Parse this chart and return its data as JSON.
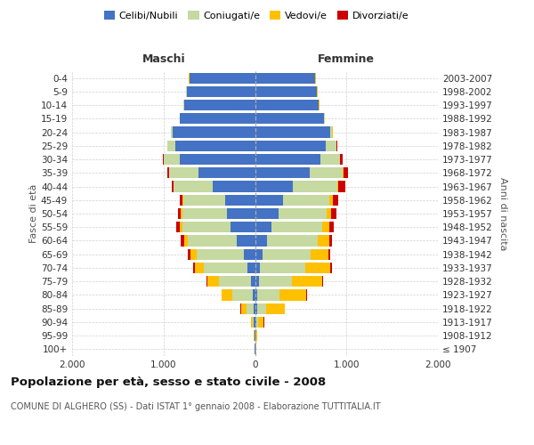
{
  "title": "Popolazione per età, sesso e stato civile - 2008",
  "subtitle": "COMUNE DI ALGHERO (SS) - Dati ISTAT 1° gennaio 2008 - Elaborazione TUTTITALIA.IT",
  "xlabel_left": "Maschi",
  "xlabel_right": "Femmine",
  "ylabel_left": "Fasce di età",
  "ylabel_right": "Anni di nascita",
  "age_groups": [
    "100+",
    "95-99",
    "90-94",
    "85-89",
    "80-84",
    "75-79",
    "70-74",
    "65-69",
    "60-64",
    "55-59",
    "50-54",
    "45-49",
    "40-44",
    "35-39",
    "30-34",
    "25-29",
    "20-24",
    "15-19",
    "10-14",
    "5-9",
    "0-4"
  ],
  "birth_years": [
    "≤ 1907",
    "1908-1912",
    "1913-1917",
    "1918-1922",
    "1923-1927",
    "1928-1932",
    "1933-1937",
    "1938-1942",
    "1943-1947",
    "1948-1952",
    "1953-1957",
    "1958-1962",
    "1963-1967",
    "1968-1972",
    "1973-1977",
    "1978-1982",
    "1983-1987",
    "1988-1992",
    "1993-1997",
    "1998-2002",
    "2003-2007"
  ],
  "colors": {
    "celibi": "#4472c4",
    "coniugati": "#c5d9a0",
    "vedovi": "#ffc000",
    "divorziati": "#cc0000"
  },
  "males": {
    "celibi": [
      4,
      5,
      10,
      18,
      28,
      48,
      78,
      118,
      198,
      268,
      308,
      328,
      458,
      618,
      818,
      868,
      898,
      818,
      778,
      748,
      718
    ],
    "coniugati": [
      2,
      4,
      18,
      78,
      218,
      348,
      478,
      518,
      538,
      528,
      488,
      458,
      428,
      318,
      178,
      88,
      18,
      4,
      2,
      2,
      2
    ],
    "vedovi": [
      1,
      4,
      14,
      58,
      118,
      128,
      98,
      68,
      38,
      22,
      12,
      8,
      4,
      4,
      2,
      2,
      2,
      2,
      2,
      2,
      2
    ],
    "divorziati": [
      1,
      2,
      2,
      4,
      4,
      8,
      18,
      28,
      38,
      48,
      38,
      32,
      22,
      18,
      12,
      4,
      2,
      2,
      2,
      2,
      2
    ]
  },
  "females": {
    "celibi": [
      4,
      4,
      14,
      28,
      28,
      48,
      58,
      78,
      128,
      178,
      258,
      308,
      418,
      598,
      718,
      778,
      818,
      758,
      698,
      678,
      658
    ],
    "coniugati": [
      2,
      4,
      24,
      98,
      238,
      358,
      488,
      528,
      558,
      558,
      528,
      508,
      478,
      358,
      208,
      108,
      28,
      6,
      2,
      2,
      2
    ],
    "vedovi": [
      4,
      14,
      58,
      198,
      298,
      328,
      278,
      198,
      128,
      78,
      48,
      32,
      18,
      8,
      6,
      4,
      2,
      2,
      2,
      2,
      2
    ],
    "divorziati": [
      1,
      2,
      2,
      4,
      4,
      8,
      14,
      18,
      28,
      48,
      52,
      58,
      78,
      52,
      28,
      8,
      4,
      2,
      2,
      2,
      2
    ]
  },
  "xlim": 2000,
  "xticks": [
    -2000,
    -1000,
    0,
    1000,
    2000
  ],
  "xticklabels": [
    "2.000",
    "1.000",
    "0",
    "1.000",
    "2.000"
  ],
  "background_color": "#ffffff",
  "grid_color": "#d0d0d0",
  "legend_labels": [
    "Celibi/Nubili",
    "Coniugati/e",
    "Vedovi/e",
    "Divorziati/e"
  ]
}
